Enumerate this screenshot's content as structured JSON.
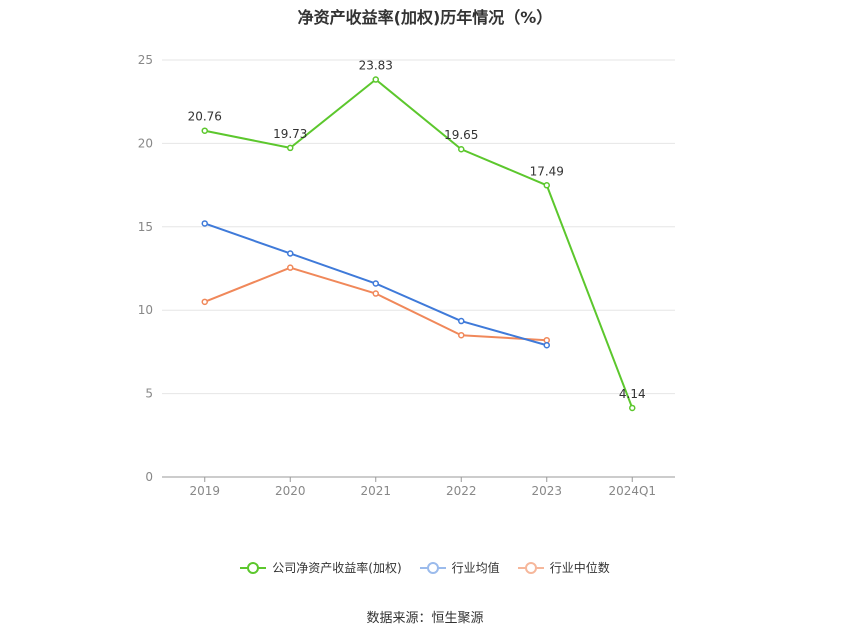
{
  "title": "净资产收益率(加权)历年情况（%）",
  "source": "数据来源：恒生聚源",
  "chart_data": {
    "type": "line",
    "categories": [
      "2019",
      "2020",
      "2021",
      "2022",
      "2023",
      "2024Q1"
    ],
    "ylim": [
      0,
      25
    ],
    "yticks": [
      0,
      5,
      10,
      15,
      20,
      25
    ],
    "grid": true,
    "legend_position": "bottom",
    "series": [
      {
        "name": "公司净资产收益率(加权)",
        "color": "#5cc72d",
        "show_labels": true,
        "values": [
          20.76,
          19.73,
          23.83,
          19.65,
          17.49,
          4.14
        ]
      },
      {
        "name": "行业均值",
        "color": "#3f7ad9",
        "show_labels": false,
        "values": [
          15.2,
          13.4,
          11.6,
          9.35,
          7.9,
          null
        ]
      },
      {
        "name": "行业中位数",
        "color": "#f0885a",
        "show_labels": false,
        "values": [
          10.5,
          12.55,
          11.0,
          8.5,
          8.2,
          null
        ]
      }
    ]
  }
}
